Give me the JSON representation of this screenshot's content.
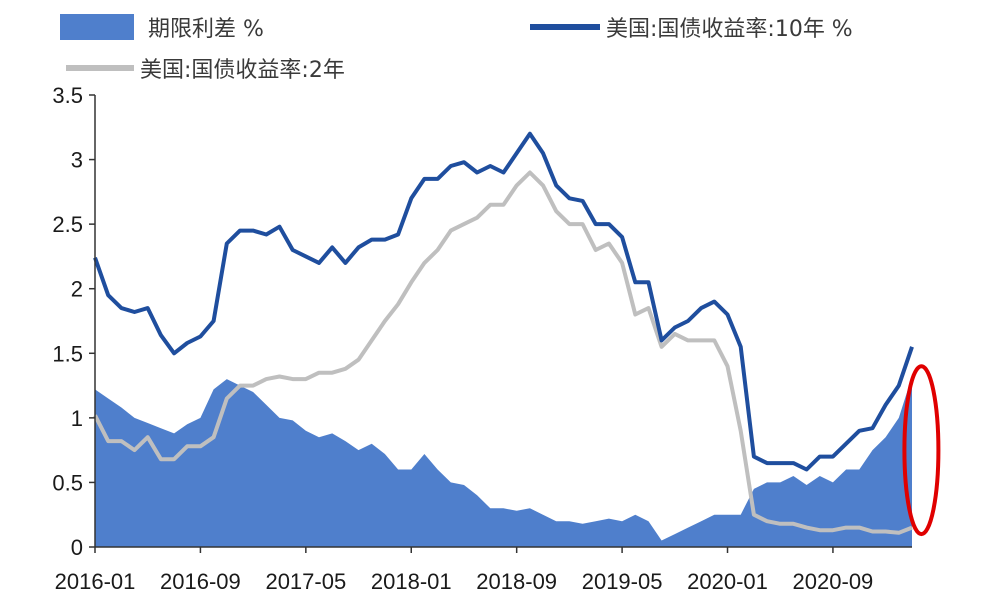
{
  "chart_data": {
    "type": "line",
    "xlabel": "",
    "ylabel": "",
    "ylim": [
      0,
      3.5
    ],
    "yticks": [
      0,
      0.5,
      1,
      1.5,
      2,
      2.5,
      3,
      3.5
    ],
    "ytick_labels": [
      "0",
      "0.5",
      "1",
      "1.5",
      "2",
      "2.5",
      "3",
      "3.5"
    ],
    "xlim": [
      "2016-01",
      "2021-03"
    ],
    "xticks": [
      "2016-01",
      "2016-09",
      "2017-05",
      "2018-01",
      "2018-09",
      "2019-05",
      "2020-01",
      "2020-09"
    ],
    "grid": false,
    "legend_position": "top",
    "x": [
      "2016-01",
      "2016-02",
      "2016-03",
      "2016-04",
      "2016-05",
      "2016-06",
      "2016-07",
      "2016-08",
      "2016-09",
      "2016-10",
      "2016-11",
      "2016-12",
      "2017-01",
      "2017-02",
      "2017-03",
      "2017-04",
      "2017-05",
      "2017-06",
      "2017-07",
      "2017-08",
      "2017-09",
      "2017-10",
      "2017-11",
      "2017-12",
      "2018-01",
      "2018-02",
      "2018-03",
      "2018-04",
      "2018-05",
      "2018-06",
      "2018-07",
      "2018-08",
      "2018-09",
      "2018-10",
      "2018-11",
      "2018-12",
      "2019-01",
      "2019-02",
      "2019-03",
      "2019-04",
      "2019-05",
      "2019-06",
      "2019-07",
      "2019-08",
      "2019-09",
      "2019-10",
      "2019-11",
      "2019-12",
      "2020-01",
      "2020-02",
      "2020-03",
      "2020-04",
      "2020-05",
      "2020-06",
      "2020-07",
      "2020-08",
      "2020-09",
      "2020-10",
      "2020-11",
      "2020-12",
      "2021-01",
      "2021-02",
      "2021-03"
    ],
    "series": [
      {
        "name": "期限利差 %",
        "style": "area",
        "color": "#4f7fcc",
        "values": [
          1.22,
          1.15,
          1.08,
          1.0,
          0.96,
          0.92,
          0.88,
          0.95,
          1.0,
          1.22,
          1.3,
          1.25,
          1.2,
          1.1,
          1.0,
          0.98,
          0.9,
          0.85,
          0.88,
          0.82,
          0.75,
          0.8,
          0.72,
          0.6,
          0.6,
          0.72,
          0.6,
          0.5,
          0.48,
          0.4,
          0.3,
          0.3,
          0.28,
          0.3,
          0.25,
          0.2,
          0.2,
          0.18,
          0.2,
          0.22,
          0.2,
          0.25,
          0.2,
          0.05,
          0.1,
          0.15,
          0.2,
          0.25,
          0.25,
          0.25,
          0.45,
          0.5,
          0.5,
          0.55,
          0.48,
          0.55,
          0.5,
          0.6,
          0.6,
          0.75,
          0.85,
          1.0,
          1.32
        ]
      },
      {
        "name": "美国:国债收益率:10年 %",
        "style": "line",
        "color": "#1f4e9e",
        "values": [
          2.24,
          1.95,
          1.85,
          1.82,
          1.85,
          1.64,
          1.5,
          1.58,
          1.63,
          1.75,
          2.35,
          2.45,
          2.45,
          2.42,
          2.48,
          2.3,
          2.25,
          2.2,
          2.32,
          2.2,
          2.32,
          2.38,
          2.38,
          2.42,
          2.7,
          2.85,
          2.85,
          2.95,
          2.98,
          2.9,
          2.95,
          2.9,
          3.05,
          3.2,
          3.05,
          2.8,
          2.7,
          2.68,
          2.5,
          2.5,
          2.4,
          2.05,
          2.05,
          1.6,
          1.7,
          1.75,
          1.85,
          1.9,
          1.8,
          1.55,
          0.7,
          0.65,
          0.65,
          0.65,
          0.6,
          0.7,
          0.7,
          0.8,
          0.9,
          0.92,
          1.1,
          1.25,
          1.55
        ]
      },
      {
        "name": "美国:国债收益率:2年",
        "style": "line",
        "color": "#bfbfbf",
        "values": [
          1.02,
          0.82,
          0.82,
          0.75,
          0.85,
          0.68,
          0.68,
          0.78,
          0.78,
          0.85,
          1.15,
          1.25,
          1.25,
          1.3,
          1.32,
          1.3,
          1.3,
          1.35,
          1.35,
          1.38,
          1.45,
          1.6,
          1.75,
          1.88,
          2.05,
          2.2,
          2.3,
          2.45,
          2.5,
          2.55,
          2.65,
          2.65,
          2.8,
          2.9,
          2.8,
          2.6,
          2.5,
          2.5,
          2.3,
          2.35,
          2.2,
          1.8,
          1.85,
          1.55,
          1.65,
          1.6,
          1.6,
          1.6,
          1.4,
          0.9,
          0.25,
          0.2,
          0.18,
          0.18,
          0.15,
          0.13,
          0.13,
          0.15,
          0.15,
          0.12,
          0.12,
          0.11,
          0.15
        ]
      }
    ]
  },
  "legend": [
    {
      "label": "期限利差 %"
    },
    {
      "label": "美国:国债收益率:10年 %"
    },
    {
      "label": "美国:国债收益率:2年"
    }
  ],
  "annotation": {
    "type": "ellipse",
    "color": "#e00000",
    "x_range": [
      "2021-02",
      "2021-03"
    ],
    "y_range": [
      0.1,
      1.4
    ]
  }
}
